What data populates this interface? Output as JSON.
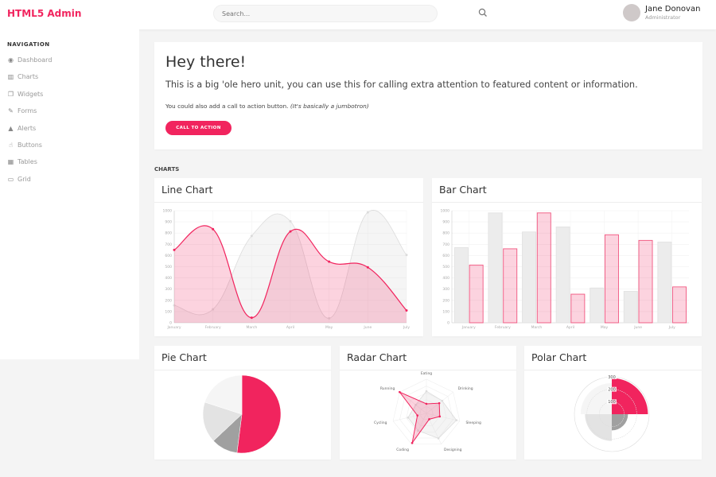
{
  "header": {
    "brand": "HTML5 Admin",
    "search_placeholder": "Search...",
    "user_name": "Jane Donovan",
    "user_role": "Administrator"
  },
  "sidebar": {
    "heading": "NAVIGATION",
    "items": [
      {
        "label": "Dashboard",
        "icon": "dashboard-icon",
        "glyph": "◉"
      },
      {
        "label": "Charts",
        "icon": "bar-chart-icon",
        "glyph": "▥"
      },
      {
        "label": "Widgets",
        "icon": "widgets-icon",
        "glyph": "❐"
      },
      {
        "label": "Forms",
        "icon": "edit-icon",
        "glyph": "✎"
      },
      {
        "label": "Alerts",
        "icon": "warning-icon",
        "glyph": "▲"
      },
      {
        "label": "Buttons",
        "icon": "hand-pointer-icon",
        "glyph": "☝"
      },
      {
        "label": "Tables",
        "icon": "table-icon",
        "glyph": "▦"
      },
      {
        "label": "Grid",
        "icon": "grid-icon",
        "glyph": "▭"
      }
    ]
  },
  "hero": {
    "title": "Hey there!",
    "lead": "This is a big 'ole hero unit, you can use this for calling extra attention to featured content or information.",
    "small": "You could also add a call to action button.",
    "small_italic": "(It's basically a jumbotron)",
    "button": "CALL TO ACTION"
  },
  "section_label": "CHARTS",
  "colors": {
    "accent": "#f1245e",
    "accent_fill": "rgba(241,36,94,0.2)",
    "grey": "#dcdcdc",
    "grey_fill": "rgba(220,220,220,0.5)"
  },
  "cards": {
    "line": "Line Chart",
    "bar": "Bar Chart",
    "pie": "Pie Chart",
    "radar": "Radar Chart",
    "polar": "Polar Chart"
  },
  "chart_data": [
    {
      "type": "line",
      "categories": [
        "January",
        "February",
        "March",
        "April",
        "May",
        "June",
        "July"
      ],
      "ylim": [
        0,
        1000
      ],
      "yticks": [
        0,
        100,
        200,
        300,
        400,
        500,
        600,
        700,
        800,
        900,
        1000
      ],
      "grid": true,
      "series": [
        {
          "values": [
            155,
            120,
            775,
            905,
            40,
            985,
            605
          ],
          "color": "#dcdcdc"
        },
        {
          "values": [
            650,
            835,
            45,
            815,
            545,
            495,
            110
          ],
          "color": "#f1245e"
        }
      ]
    },
    {
      "type": "bar",
      "categories": [
        "January",
        "February",
        "March",
        "April",
        "May",
        "June",
        "July"
      ],
      "ylim": [
        0,
        1000
      ],
      "yticks": [
        0,
        100,
        200,
        300,
        400,
        500,
        600,
        700,
        800,
        900,
        1000
      ],
      "grid": true,
      "series": [
        {
          "values": [
            670,
            980,
            810,
            855,
            310,
            280,
            720
          ],
          "color": "#dcdcdc"
        },
        {
          "values": [
            515,
            660,
            980,
            255,
            785,
            735,
            320
          ],
          "color": "#f1245e"
        }
      ]
    },
    {
      "type": "pie",
      "values": [
        52,
        11,
        17,
        20
      ],
      "colors": [
        "#f1245e",
        "#a0a0a0",
        "#e3e3e3",
        "#f5f5f5"
      ]
    },
    {
      "type": "radar",
      "labels": [
        "Eating",
        "Drinking",
        "Sleeping",
        "Designing",
        "Coding",
        "Cycling",
        "Running"
      ],
      "max": 100,
      "series": [
        {
          "values": [
            65,
            59,
            90,
            81,
            56,
            55,
            40
          ],
          "color": "#dcdcdc"
        },
        {
          "values": [
            28,
            48,
            40,
            19,
            96,
            27,
            100
          ],
          "color": "#f1245e"
        }
      ]
    },
    {
      "type": "polar",
      "values": [
        290,
        130,
        215,
        250
      ],
      "colors": [
        "#f1245e",
        "#a0a0a0",
        "#e3e3e3",
        "#f5f5f5"
      ],
      "max": 300,
      "ticks": [
        100,
        200,
        300
      ]
    }
  ]
}
